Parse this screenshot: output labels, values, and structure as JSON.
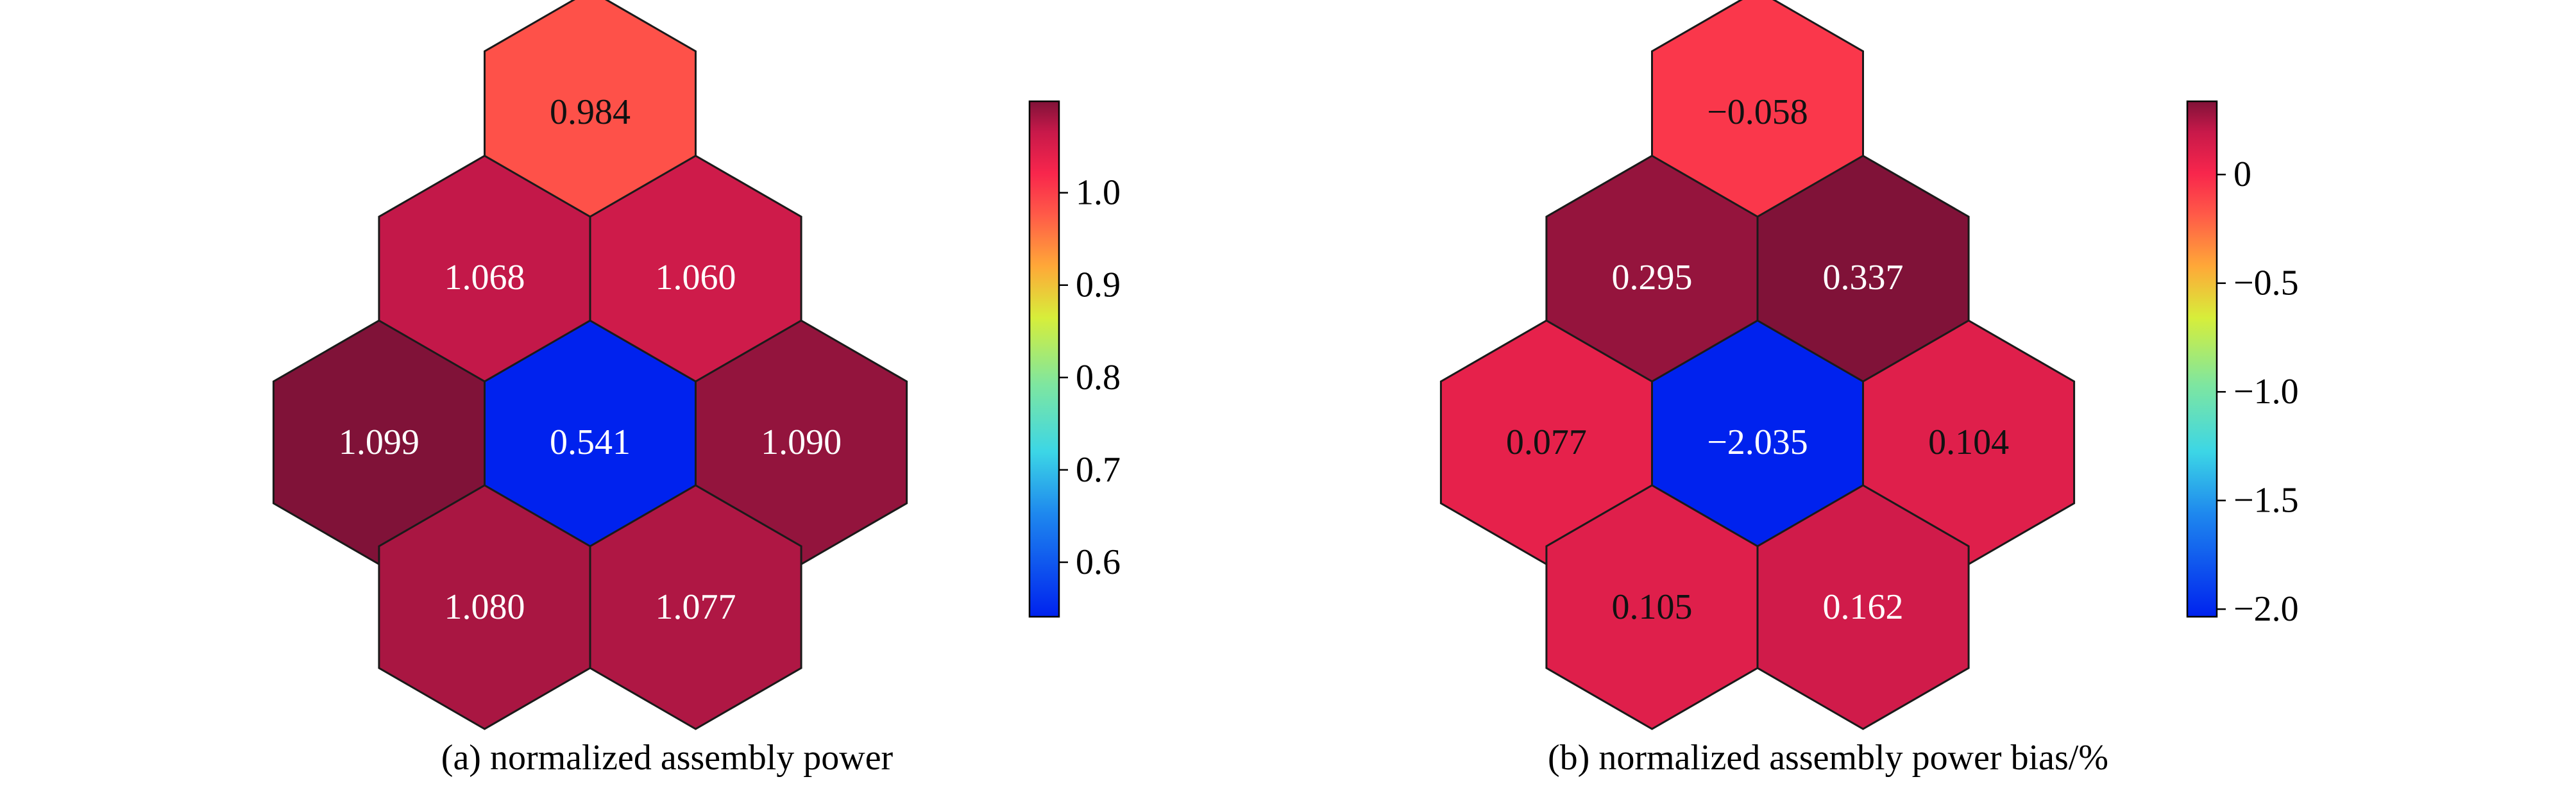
{
  "chart_data": [
    {
      "type": "heatmap",
      "layout": "hexagonal assembly map",
      "caption": "(a) normalized assembly power",
      "colormap": "jet-like, blue (low) to dark red (high)",
      "cells": [
        {
          "row": 0,
          "col": 0,
          "value": 0.984,
          "label": "0.984"
        },
        {
          "row": 1,
          "col": 0,
          "value": 1.068,
          "label": "1.068"
        },
        {
          "row": 1,
          "col": 1,
          "value": 1.06,
          "label": "1.060"
        },
        {
          "row": 2,
          "col": 0,
          "value": 1.099,
          "label": "1.099"
        },
        {
          "row": 2,
          "col": 1,
          "value": 0.541,
          "label": "0.541"
        },
        {
          "row": 2,
          "col": 2,
          "value": 1.09,
          "label": "1.090"
        },
        {
          "row": 3,
          "col": 0,
          "value": 1.08,
          "label": "1.080"
        },
        {
          "row": 3,
          "col": 1,
          "value": 1.077,
          "label": "1.077"
        }
      ],
      "colorbar": {
        "range": [
          0.541,
          1.099
        ],
        "ticks": [
          0.6,
          0.7,
          0.8,
          0.9,
          1.0
        ],
        "tick_labels": [
          "0.6",
          "0.7",
          "0.8",
          "0.9",
          "1.0"
        ]
      }
    },
    {
      "type": "heatmap",
      "layout": "hexagonal assembly map",
      "caption": "(b) normalized assembly power bias/%",
      "colormap": "jet-like, blue (low) to dark red (high)",
      "cells": [
        {
          "row": 0,
          "col": 0,
          "value": -0.058,
          "label": "−0.058"
        },
        {
          "row": 1,
          "col": 0,
          "value": 0.295,
          "label": "0.295"
        },
        {
          "row": 1,
          "col": 1,
          "value": 0.337,
          "label": "0.337"
        },
        {
          "row": 2,
          "col": 0,
          "value": 0.077,
          "label": "0.077"
        },
        {
          "row": 2,
          "col": 1,
          "value": -2.035,
          "label": "−2.035"
        },
        {
          "row": 2,
          "col": 2,
          "value": 0.104,
          "label": "0.104"
        },
        {
          "row": 3,
          "col": 0,
          "value": 0.105,
          "label": "0.105"
        },
        {
          "row": 3,
          "col": 1,
          "value": 0.162,
          "label": "0.162"
        }
      ],
      "colorbar": {
        "range": [
          -2.035,
          0.337
        ],
        "ticks": [
          0,
          -0.5,
          -1.0,
          -1.5,
          -2.0
        ],
        "tick_labels": [
          "0",
          "−0.5",
          "−1.0",
          "−1.5",
          "−2.0"
        ]
      }
    }
  ]
}
